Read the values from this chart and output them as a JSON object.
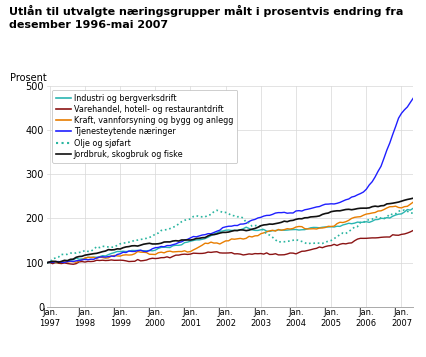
{
  "title": "Utlån til utvalgte næringsgrupper målt i prosentvis endring fra\ndesember 1996-mai 2007",
  "ylabel": "Prosent",
  "ylim": [
    0,
    500
  ],
  "yticks": [
    0,
    100,
    200,
    300,
    400,
    500
  ],
  "series": [
    {
      "label": "Industri og bergverksdrift",
      "color": "#2ab5b2",
      "linestyle": "-",
      "lw": 1.0
    },
    {
      "label": "Varehandel, hotell- og restaurantdrift",
      "color": "#8b1414",
      "linestyle": "-",
      "lw": 1.0
    },
    {
      "label": "Kraft, vannforsyning og bygg og anlegg",
      "color": "#e87d00",
      "linestyle": "-",
      "lw": 1.0
    },
    {
      "label": "Tjenesteytende næringer",
      "color": "#1f1fff",
      "linestyle": "-",
      "lw": 1.0
    },
    {
      "label": "Olje og sjøfart",
      "color": "#2ab5a0",
      "linestyle": ":",
      "lw": 1.2
    },
    {
      "label": "Jordbruk, skogbruk og fiske",
      "color": "#111111",
      "linestyle": "-",
      "lw": 1.2
    }
  ],
  "xtick_labels": [
    "Jan.\n1997",
    "Jan.\n1998",
    "Jan.\n1999",
    "Jan.\n2000",
    "Jan.\n2001",
    "Jan.\n2002",
    "Jan.\n2003",
    "Jan.\n2004",
    "Jan.\n2005",
    "Jan.\n2006",
    "Jan.\n2007"
  ],
  "background_color": "#ffffff",
  "grid_color": "#d8d8d8"
}
